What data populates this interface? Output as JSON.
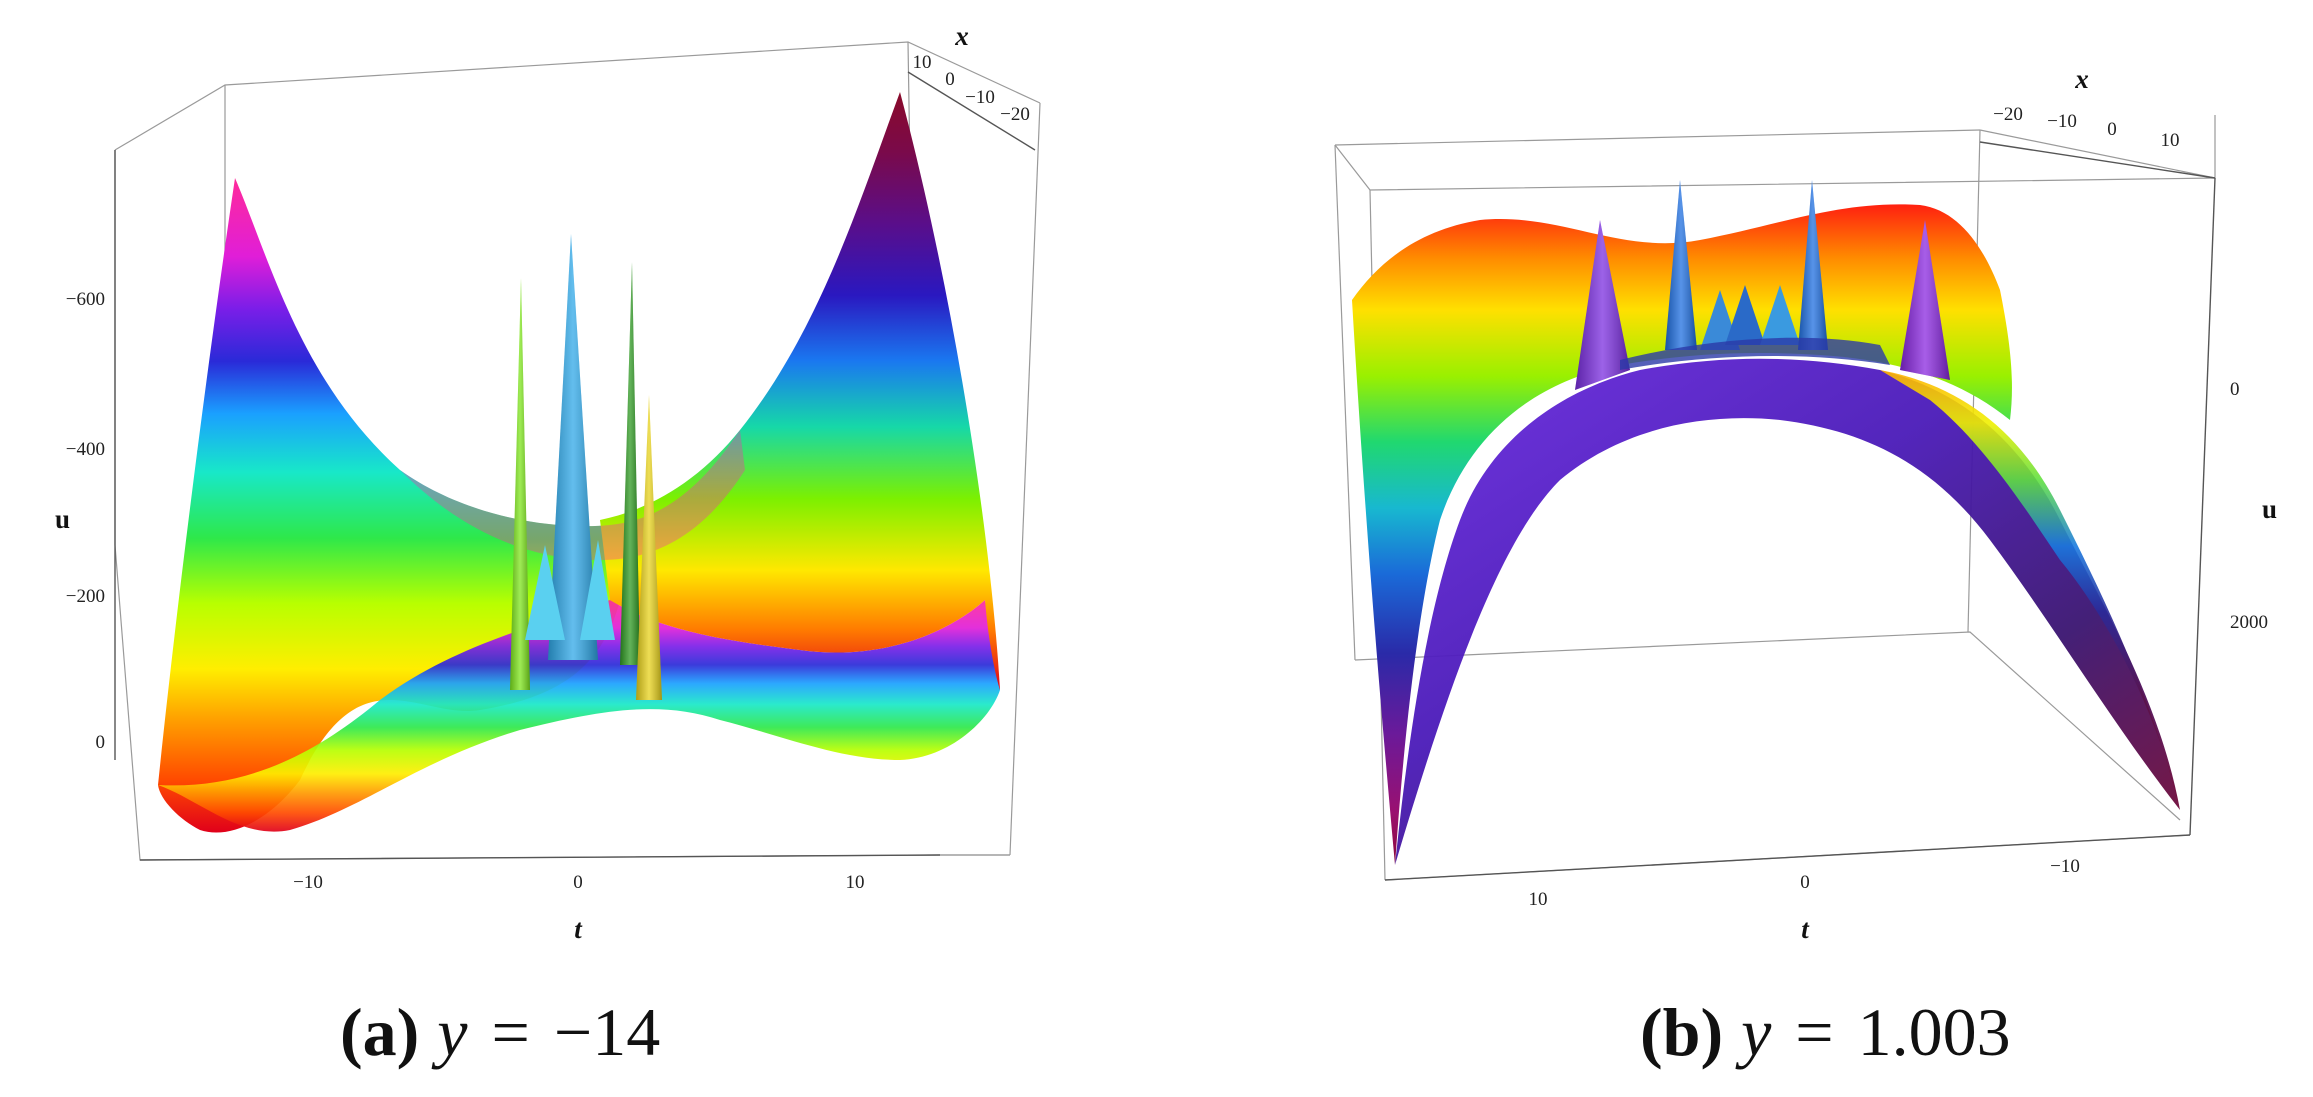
{
  "chart_data": [
    {
      "type": "surface3d",
      "caption": {
        "label": "(a)",
        "variable": "y",
        "equals": "=",
        "value": "−14"
      },
      "t_axis": {
        "label": "t",
        "ticks": [
          "−10",
          "0",
          "10"
        ]
      },
      "x_axis": {
        "label": "x",
        "ticks": [
          "10",
          "0",
          "−10",
          "−20"
        ]
      },
      "u_axis": {
        "label": "u",
        "ticks": [
          "−600",
          "−400",
          "−200",
          "0"
        ]
      },
      "surface_shape": "saddle",
      "peaks": [
        {
          "t": -2.0,
          "color": "#7ee51c"
        },
        {
          "t": -0.3,
          "color": "#2fa8e8"
        },
        {
          "t": 1.8,
          "color": "#2f9a23"
        },
        {
          "t": 2.6,
          "color": "#e8d21c"
        }
      ]
    },
    {
      "type": "surface3d",
      "caption": {
        "label": "(b)",
        "variable": "y",
        "equals": "=",
        "value": "1.003"
      },
      "t_axis": {
        "label": "t",
        "ticks": [
          "10",
          "0",
          "−10"
        ]
      },
      "x_axis": {
        "label": "x",
        "ticks": [
          "−20",
          "−10",
          "0",
          "10"
        ]
      },
      "u_axis": {
        "label": "u",
        "ticks": [
          "0",
          "2000"
        ]
      },
      "surface_shape": "dome",
      "peaks": [
        {
          "t": 8,
          "color": "#7b2ee0"
        },
        {
          "t": 4.5,
          "color": "#1f6fe0"
        },
        {
          "t": 0,
          "color": "#1f6fe0"
        },
        {
          "t": -4,
          "color": "#8a28e0"
        }
      ]
    }
  ]
}
